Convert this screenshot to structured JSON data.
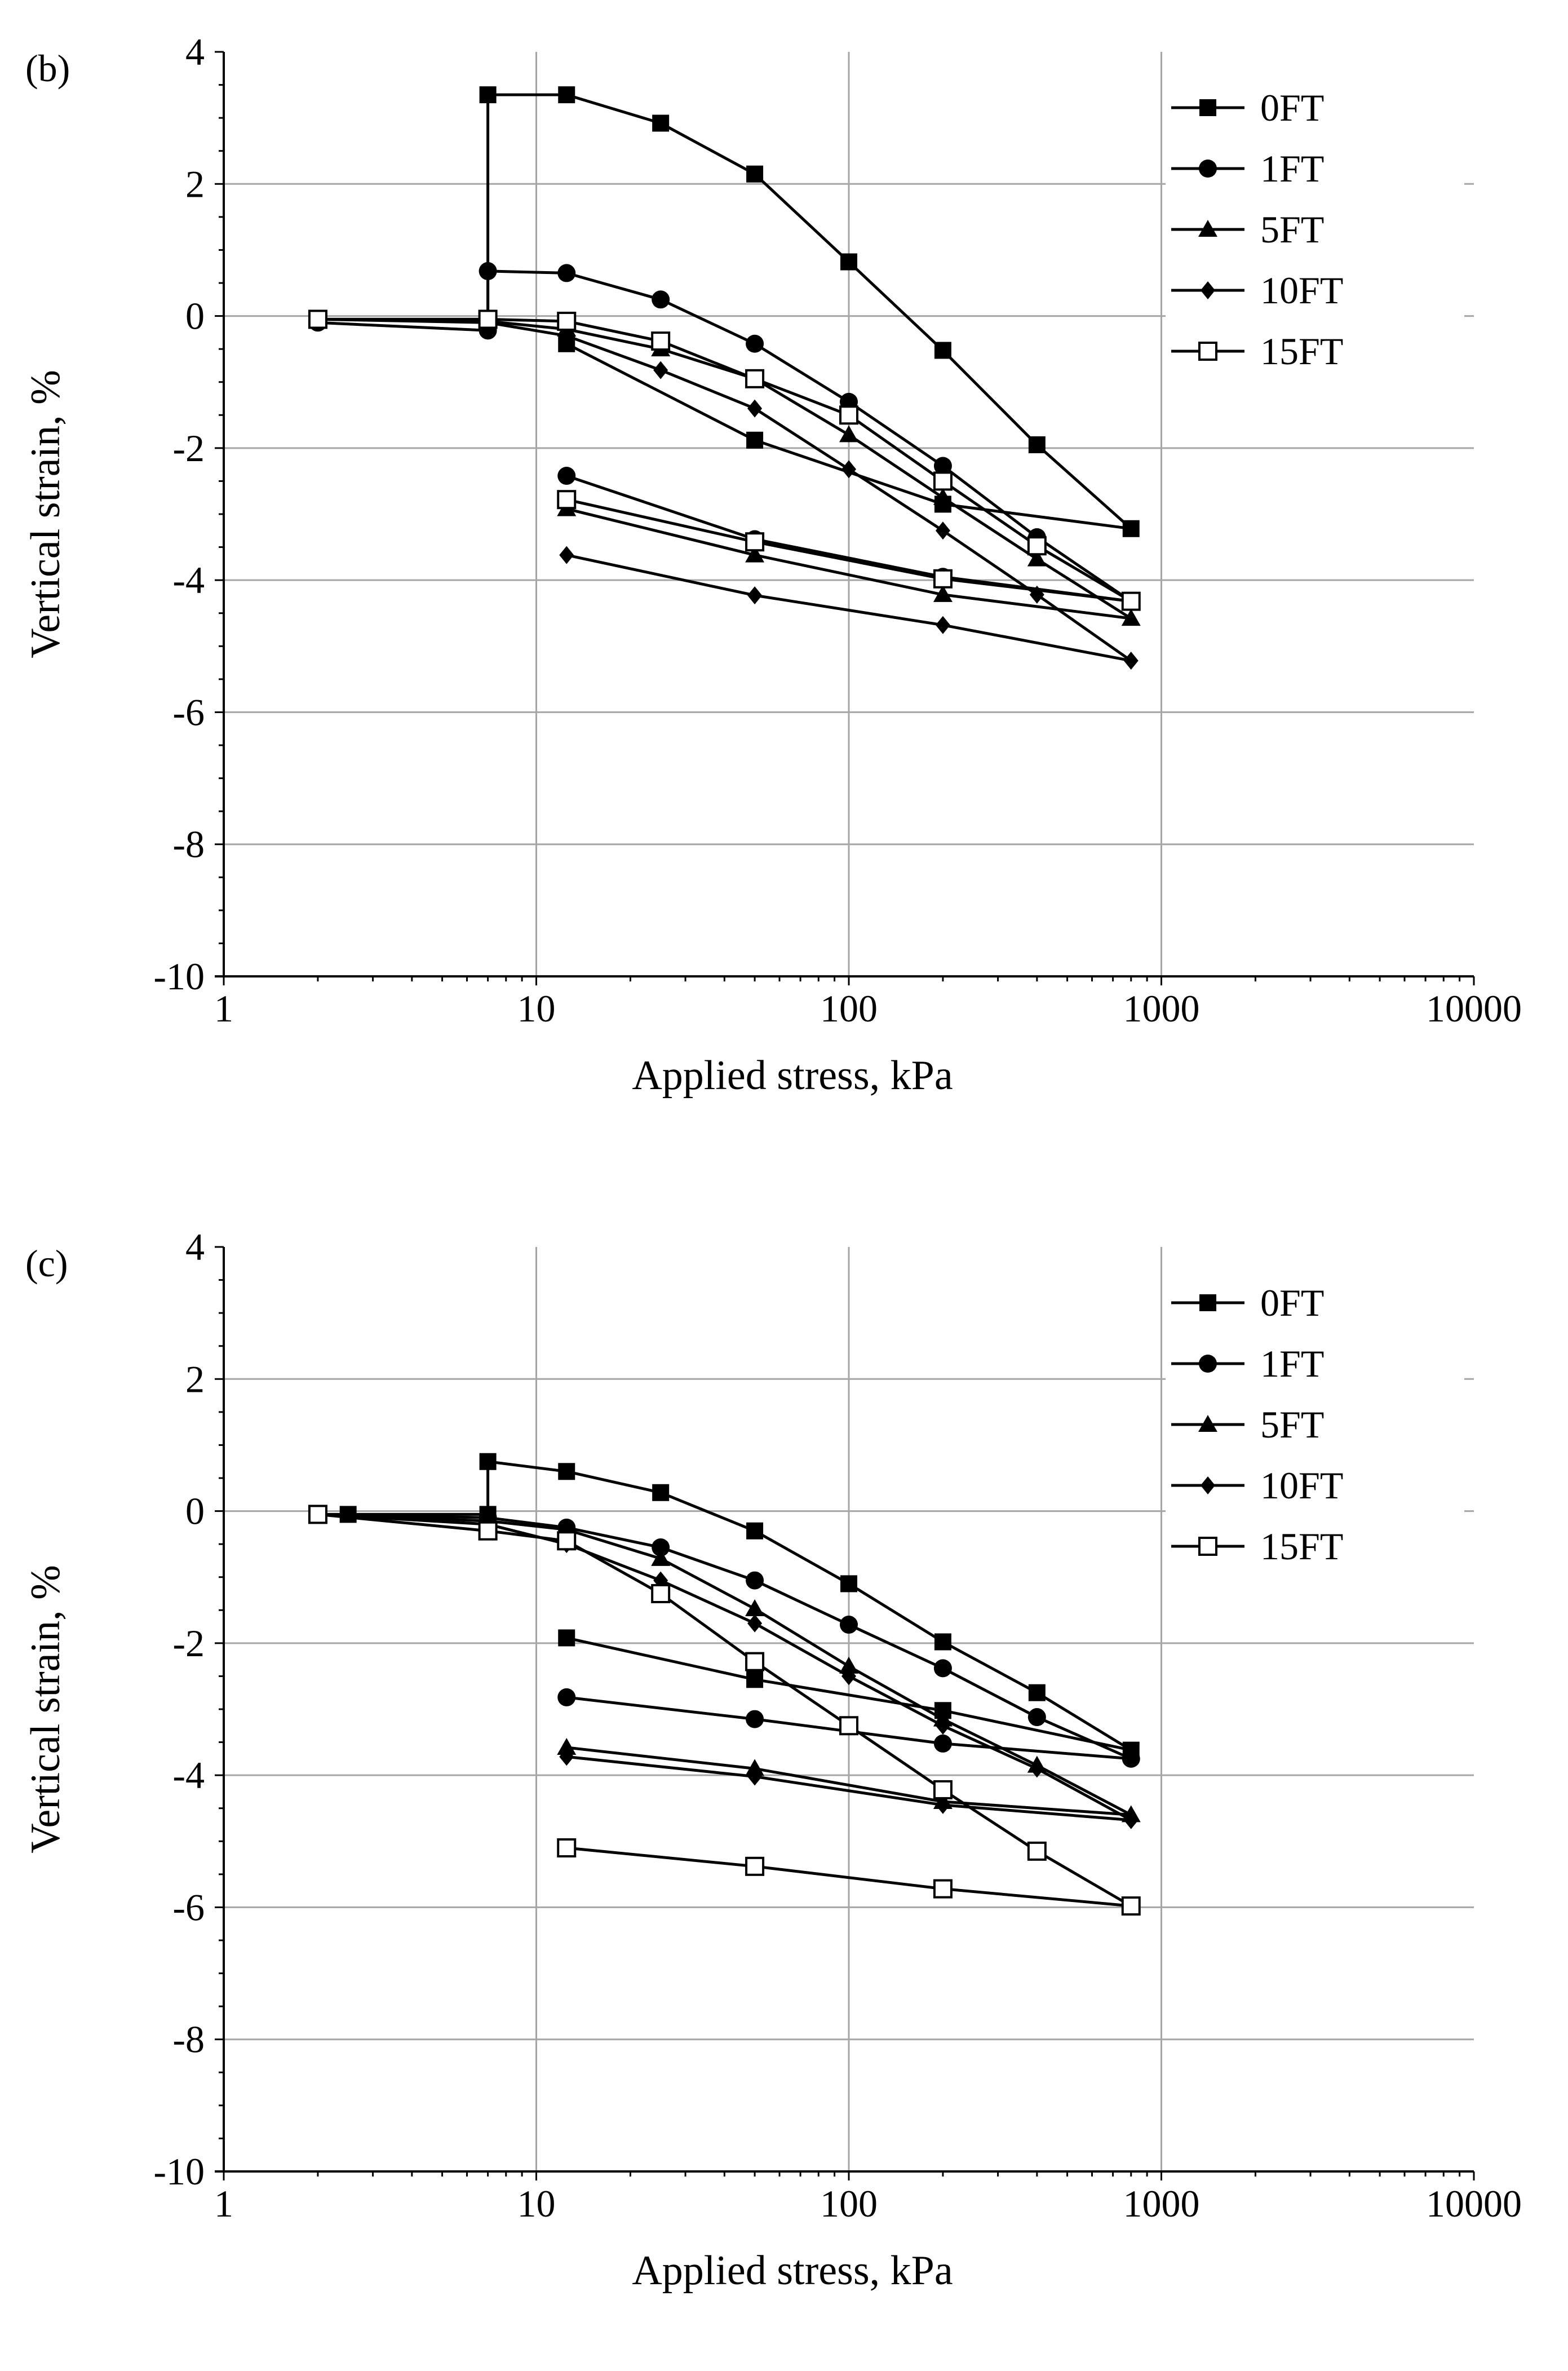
{
  "chart_data": [
    {
      "panel_label": "(b)",
      "type": "line",
      "x_scale": "log",
      "xlabel": "Applied stress, kPa",
      "ylabel": "Vertical strain, %",
      "xlim": [
        1,
        10000
      ],
      "ylim": [
        -10,
        4
      ],
      "x_ticks": [
        "1",
        "10",
        "100",
        "1000",
        "10000"
      ],
      "y_ticks": [
        "4",
        "2",
        "0",
        "-2",
        "-4",
        "-6",
        "-8",
        "-10"
      ],
      "grid": true,
      "legend_position": "top-right",
      "series": [
        {
          "name": "0FT",
          "marker": "square",
          "x": [
            2,
            7,
            7,
            12.5,
            25,
            50,
            100,
            200,
            400,
            800,
            200,
            50,
            12.5
          ],
          "y": [
            -0.05,
            -0.05,
            3.35,
            3.35,
            2.92,
            2.15,
            0.82,
            -0.52,
            -1.95,
            -3.22,
            -2.85,
            -1.88,
            -0.42
          ]
        },
        {
          "name": "1FT",
          "marker": "circle",
          "x": [
            2,
            7,
            7,
            12.5,
            25,
            50,
            100,
            200,
            400,
            800,
            200,
            50,
            12.5
          ],
          "y": [
            -0.1,
            -0.22,
            0.68,
            0.65,
            0.25,
            -0.42,
            -1.3,
            -2.27,
            -3.35,
            -4.32,
            -3.95,
            -3.38,
            -2.42
          ]
        },
        {
          "name": "5FT",
          "marker": "triangle",
          "x": [
            2,
            7,
            12.5,
            25,
            50,
            100,
            200,
            400,
            800,
            200,
            50,
            12.5
          ],
          "y": [
            -0.05,
            -0.08,
            -0.2,
            -0.5,
            -0.95,
            -1.8,
            -2.75,
            -3.68,
            -4.58,
            -4.22,
            -3.62,
            -2.92
          ]
        },
        {
          "name": "10FT",
          "marker": "diamond",
          "x": [
            2,
            7,
            12.5,
            25,
            50,
            100,
            200,
            400,
            800,
            200,
            50,
            12.5
          ],
          "y": [
            -0.05,
            -0.1,
            -0.3,
            -0.82,
            -1.4,
            -2.32,
            -3.25,
            -4.22,
            -5.22,
            -4.68,
            -4.23,
            -3.62
          ]
        },
        {
          "name": "15FT",
          "marker": "open-square",
          "x": [
            2,
            7,
            12.5,
            25,
            50,
            100,
            200,
            400,
            800,
            200,
            50,
            12.5
          ],
          "y": [
            -0.05,
            -0.05,
            -0.08,
            -0.38,
            -0.95,
            -1.5,
            -2.5,
            -3.48,
            -4.32,
            -3.98,
            -3.42,
            -2.78
          ]
        }
      ]
    },
    {
      "panel_label": "(c)",
      "type": "line",
      "x_scale": "log",
      "xlabel": "Applied stress, kPa",
      "ylabel": "Vertical strain, %",
      "xlim": [
        1,
        10000
      ],
      "ylim": [
        -10,
        4
      ],
      "x_ticks": [
        "1",
        "10",
        "100",
        "1000",
        "10000"
      ],
      "y_ticks": [
        "4",
        "2",
        "0",
        "-2",
        "-4",
        "-6",
        "-8",
        "-10"
      ],
      "grid": true,
      "legend_position": "top-right",
      "series": [
        {
          "name": "0FT",
          "marker": "square",
          "x": [
            2,
            2.5,
            7,
            7,
            12.5,
            25,
            50,
            100,
            200,
            400,
            800,
            200,
            50,
            12.5
          ],
          "y": [
            -0.05,
            -0.05,
            -0.05,
            0.75,
            0.6,
            0.28,
            -0.3,
            -1.1,
            -1.98,
            -2.75,
            -3.62,
            -3.02,
            -2.55,
            -1.92
          ]
        },
        {
          "name": "1FT",
          "marker": "circle",
          "x": [
            2,
            7,
            12.5,
            25,
            50,
            100,
            200,
            400,
            800,
            200,
            50,
            12.5
          ],
          "y": [
            -0.05,
            -0.1,
            -0.25,
            -0.55,
            -1.05,
            -1.72,
            -2.38,
            -3.12,
            -3.75,
            -3.52,
            -3.15,
            -2.82
          ]
        },
        {
          "name": "5FT",
          "marker": "triangle",
          "x": [
            2,
            7,
            12.5,
            25,
            50,
            100,
            200,
            400,
            800,
            200,
            50,
            12.5
          ],
          "y": [
            -0.05,
            -0.15,
            -0.28,
            -0.72,
            -1.48,
            -2.35,
            -3.15,
            -3.85,
            -4.6,
            -4.4,
            -3.9,
            -3.58
          ]
        },
        {
          "name": "10FT",
          "marker": "diamond",
          "x": [
            2,
            7,
            12.5,
            25,
            50,
            100,
            200,
            400,
            800,
            200,
            50,
            12.5
          ],
          "y": [
            -0.05,
            -0.2,
            -0.5,
            -1.05,
            -1.7,
            -2.5,
            -3.25,
            -3.9,
            -4.68,
            -4.45,
            -4.02,
            -3.72
          ]
        },
        {
          "name": "15FT",
          "marker": "open-square",
          "x": [
            2,
            7,
            12.5,
            25,
            50,
            100,
            200,
            400,
            800,
            200,
            50,
            12.5
          ],
          "y": [
            -0.05,
            -0.3,
            -0.45,
            -1.25,
            -2.28,
            -3.25,
            -4.22,
            -5.15,
            -5.98,
            -5.72,
            -5.38,
            -5.1
          ]
        }
      ]
    }
  ]
}
